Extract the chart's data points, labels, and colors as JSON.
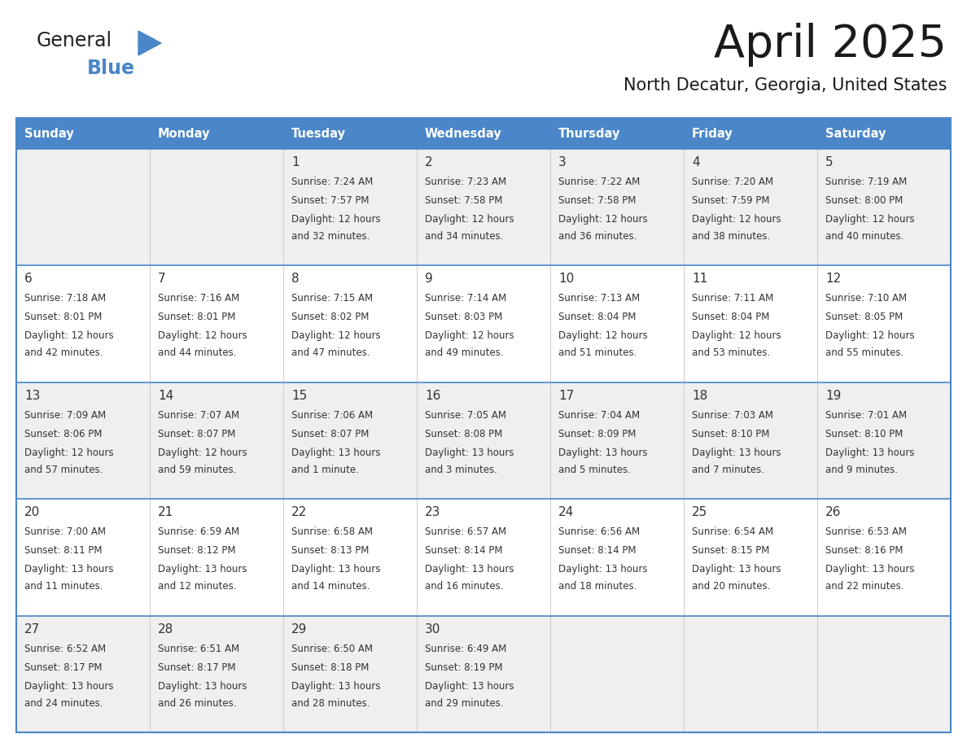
{
  "title": "April 2025",
  "subtitle": "North Decatur, Georgia, United States",
  "header_bg": "#4A86C8",
  "header_text": "#FFFFFF",
  "row_bg_odd": "#EFEFEF",
  "row_bg_even": "#FFFFFF",
  "border_color": "#4A86C8",
  "text_color": "#333333",
  "day_names": [
    "Sunday",
    "Monday",
    "Tuesday",
    "Wednesday",
    "Thursday",
    "Friday",
    "Saturday"
  ],
  "days": [
    {
      "day": 1,
      "col": 2,
      "row": 0,
      "sunrise": "7:24 AM",
      "sunset": "7:57 PM",
      "daylight_line1": "Daylight: 12 hours",
      "daylight_line2": "and 32 minutes."
    },
    {
      "day": 2,
      "col": 3,
      "row": 0,
      "sunrise": "7:23 AM",
      "sunset": "7:58 PM",
      "daylight_line1": "Daylight: 12 hours",
      "daylight_line2": "and 34 minutes."
    },
    {
      "day": 3,
      "col": 4,
      "row": 0,
      "sunrise": "7:22 AM",
      "sunset": "7:58 PM",
      "daylight_line1": "Daylight: 12 hours",
      "daylight_line2": "and 36 minutes."
    },
    {
      "day": 4,
      "col": 5,
      "row": 0,
      "sunrise": "7:20 AM",
      "sunset": "7:59 PM",
      "daylight_line1": "Daylight: 12 hours",
      "daylight_line2": "and 38 minutes."
    },
    {
      "day": 5,
      "col": 6,
      "row": 0,
      "sunrise": "7:19 AM",
      "sunset": "8:00 PM",
      "daylight_line1": "Daylight: 12 hours",
      "daylight_line2": "and 40 minutes."
    },
    {
      "day": 6,
      "col": 0,
      "row": 1,
      "sunrise": "7:18 AM",
      "sunset": "8:01 PM",
      "daylight_line1": "Daylight: 12 hours",
      "daylight_line2": "and 42 minutes."
    },
    {
      "day": 7,
      "col": 1,
      "row": 1,
      "sunrise": "7:16 AM",
      "sunset": "8:01 PM",
      "daylight_line1": "Daylight: 12 hours",
      "daylight_line2": "and 44 minutes."
    },
    {
      "day": 8,
      "col": 2,
      "row": 1,
      "sunrise": "7:15 AM",
      "sunset": "8:02 PM",
      "daylight_line1": "Daylight: 12 hours",
      "daylight_line2": "and 47 minutes."
    },
    {
      "day": 9,
      "col": 3,
      "row": 1,
      "sunrise": "7:14 AM",
      "sunset": "8:03 PM",
      "daylight_line1": "Daylight: 12 hours",
      "daylight_line2": "and 49 minutes."
    },
    {
      "day": 10,
      "col": 4,
      "row": 1,
      "sunrise": "7:13 AM",
      "sunset": "8:04 PM",
      "daylight_line1": "Daylight: 12 hours",
      "daylight_line2": "and 51 minutes."
    },
    {
      "day": 11,
      "col": 5,
      "row": 1,
      "sunrise": "7:11 AM",
      "sunset": "8:04 PM",
      "daylight_line1": "Daylight: 12 hours",
      "daylight_line2": "and 53 minutes."
    },
    {
      "day": 12,
      "col": 6,
      "row": 1,
      "sunrise": "7:10 AM",
      "sunset": "8:05 PM",
      "daylight_line1": "Daylight: 12 hours",
      "daylight_line2": "and 55 minutes."
    },
    {
      "day": 13,
      "col": 0,
      "row": 2,
      "sunrise": "7:09 AM",
      "sunset": "8:06 PM",
      "daylight_line1": "Daylight: 12 hours",
      "daylight_line2": "and 57 minutes."
    },
    {
      "day": 14,
      "col": 1,
      "row": 2,
      "sunrise": "7:07 AM",
      "sunset": "8:07 PM",
      "daylight_line1": "Daylight: 12 hours",
      "daylight_line2": "and 59 minutes."
    },
    {
      "day": 15,
      "col": 2,
      "row": 2,
      "sunrise": "7:06 AM",
      "sunset": "8:07 PM",
      "daylight_line1": "Daylight: 13 hours",
      "daylight_line2": "and 1 minute."
    },
    {
      "day": 16,
      "col": 3,
      "row": 2,
      "sunrise": "7:05 AM",
      "sunset": "8:08 PM",
      "daylight_line1": "Daylight: 13 hours",
      "daylight_line2": "and 3 minutes."
    },
    {
      "day": 17,
      "col": 4,
      "row": 2,
      "sunrise": "7:04 AM",
      "sunset": "8:09 PM",
      "daylight_line1": "Daylight: 13 hours",
      "daylight_line2": "and 5 minutes."
    },
    {
      "day": 18,
      "col": 5,
      "row": 2,
      "sunrise": "7:03 AM",
      "sunset": "8:10 PM",
      "daylight_line1": "Daylight: 13 hours",
      "daylight_line2": "and 7 minutes."
    },
    {
      "day": 19,
      "col": 6,
      "row": 2,
      "sunrise": "7:01 AM",
      "sunset": "8:10 PM",
      "daylight_line1": "Daylight: 13 hours",
      "daylight_line2": "and 9 minutes."
    },
    {
      "day": 20,
      "col": 0,
      "row": 3,
      "sunrise": "7:00 AM",
      "sunset": "8:11 PM",
      "daylight_line1": "Daylight: 13 hours",
      "daylight_line2": "and 11 minutes."
    },
    {
      "day": 21,
      "col": 1,
      "row": 3,
      "sunrise": "6:59 AM",
      "sunset": "8:12 PM",
      "daylight_line1": "Daylight: 13 hours",
      "daylight_line2": "and 12 minutes."
    },
    {
      "day": 22,
      "col": 2,
      "row": 3,
      "sunrise": "6:58 AM",
      "sunset": "8:13 PM",
      "daylight_line1": "Daylight: 13 hours",
      "daylight_line2": "and 14 minutes."
    },
    {
      "day": 23,
      "col": 3,
      "row": 3,
      "sunrise": "6:57 AM",
      "sunset": "8:14 PM",
      "daylight_line1": "Daylight: 13 hours",
      "daylight_line2": "and 16 minutes."
    },
    {
      "day": 24,
      "col": 4,
      "row": 3,
      "sunrise": "6:56 AM",
      "sunset": "8:14 PM",
      "daylight_line1": "Daylight: 13 hours",
      "daylight_line2": "and 18 minutes."
    },
    {
      "day": 25,
      "col": 5,
      "row": 3,
      "sunrise": "6:54 AM",
      "sunset": "8:15 PM",
      "daylight_line1": "Daylight: 13 hours",
      "daylight_line2": "and 20 minutes."
    },
    {
      "day": 26,
      "col": 6,
      "row": 3,
      "sunrise": "6:53 AM",
      "sunset": "8:16 PM",
      "daylight_line1": "Daylight: 13 hours",
      "daylight_line2": "and 22 minutes."
    },
    {
      "day": 27,
      "col": 0,
      "row": 4,
      "sunrise": "6:52 AM",
      "sunset": "8:17 PM",
      "daylight_line1": "Daylight: 13 hours",
      "daylight_line2": "and 24 minutes."
    },
    {
      "day": 28,
      "col": 1,
      "row": 4,
      "sunrise": "6:51 AM",
      "sunset": "8:17 PM",
      "daylight_line1": "Daylight: 13 hours",
      "daylight_line2": "and 26 minutes."
    },
    {
      "day": 29,
      "col": 2,
      "row": 4,
      "sunrise": "6:50 AM",
      "sunset": "8:18 PM",
      "daylight_line1": "Daylight: 13 hours",
      "daylight_line2": "and 28 minutes."
    },
    {
      "day": 30,
      "col": 3,
      "row": 4,
      "sunrise": "6:49 AM",
      "sunset": "8:19 PM",
      "daylight_line1": "Daylight: 13 hours",
      "daylight_line2": "and 29 minutes."
    }
  ],
  "num_rows": 5,
  "num_cols": 7,
  "fig_width": 11.88,
  "fig_height": 9.18,
  "dpi": 100
}
